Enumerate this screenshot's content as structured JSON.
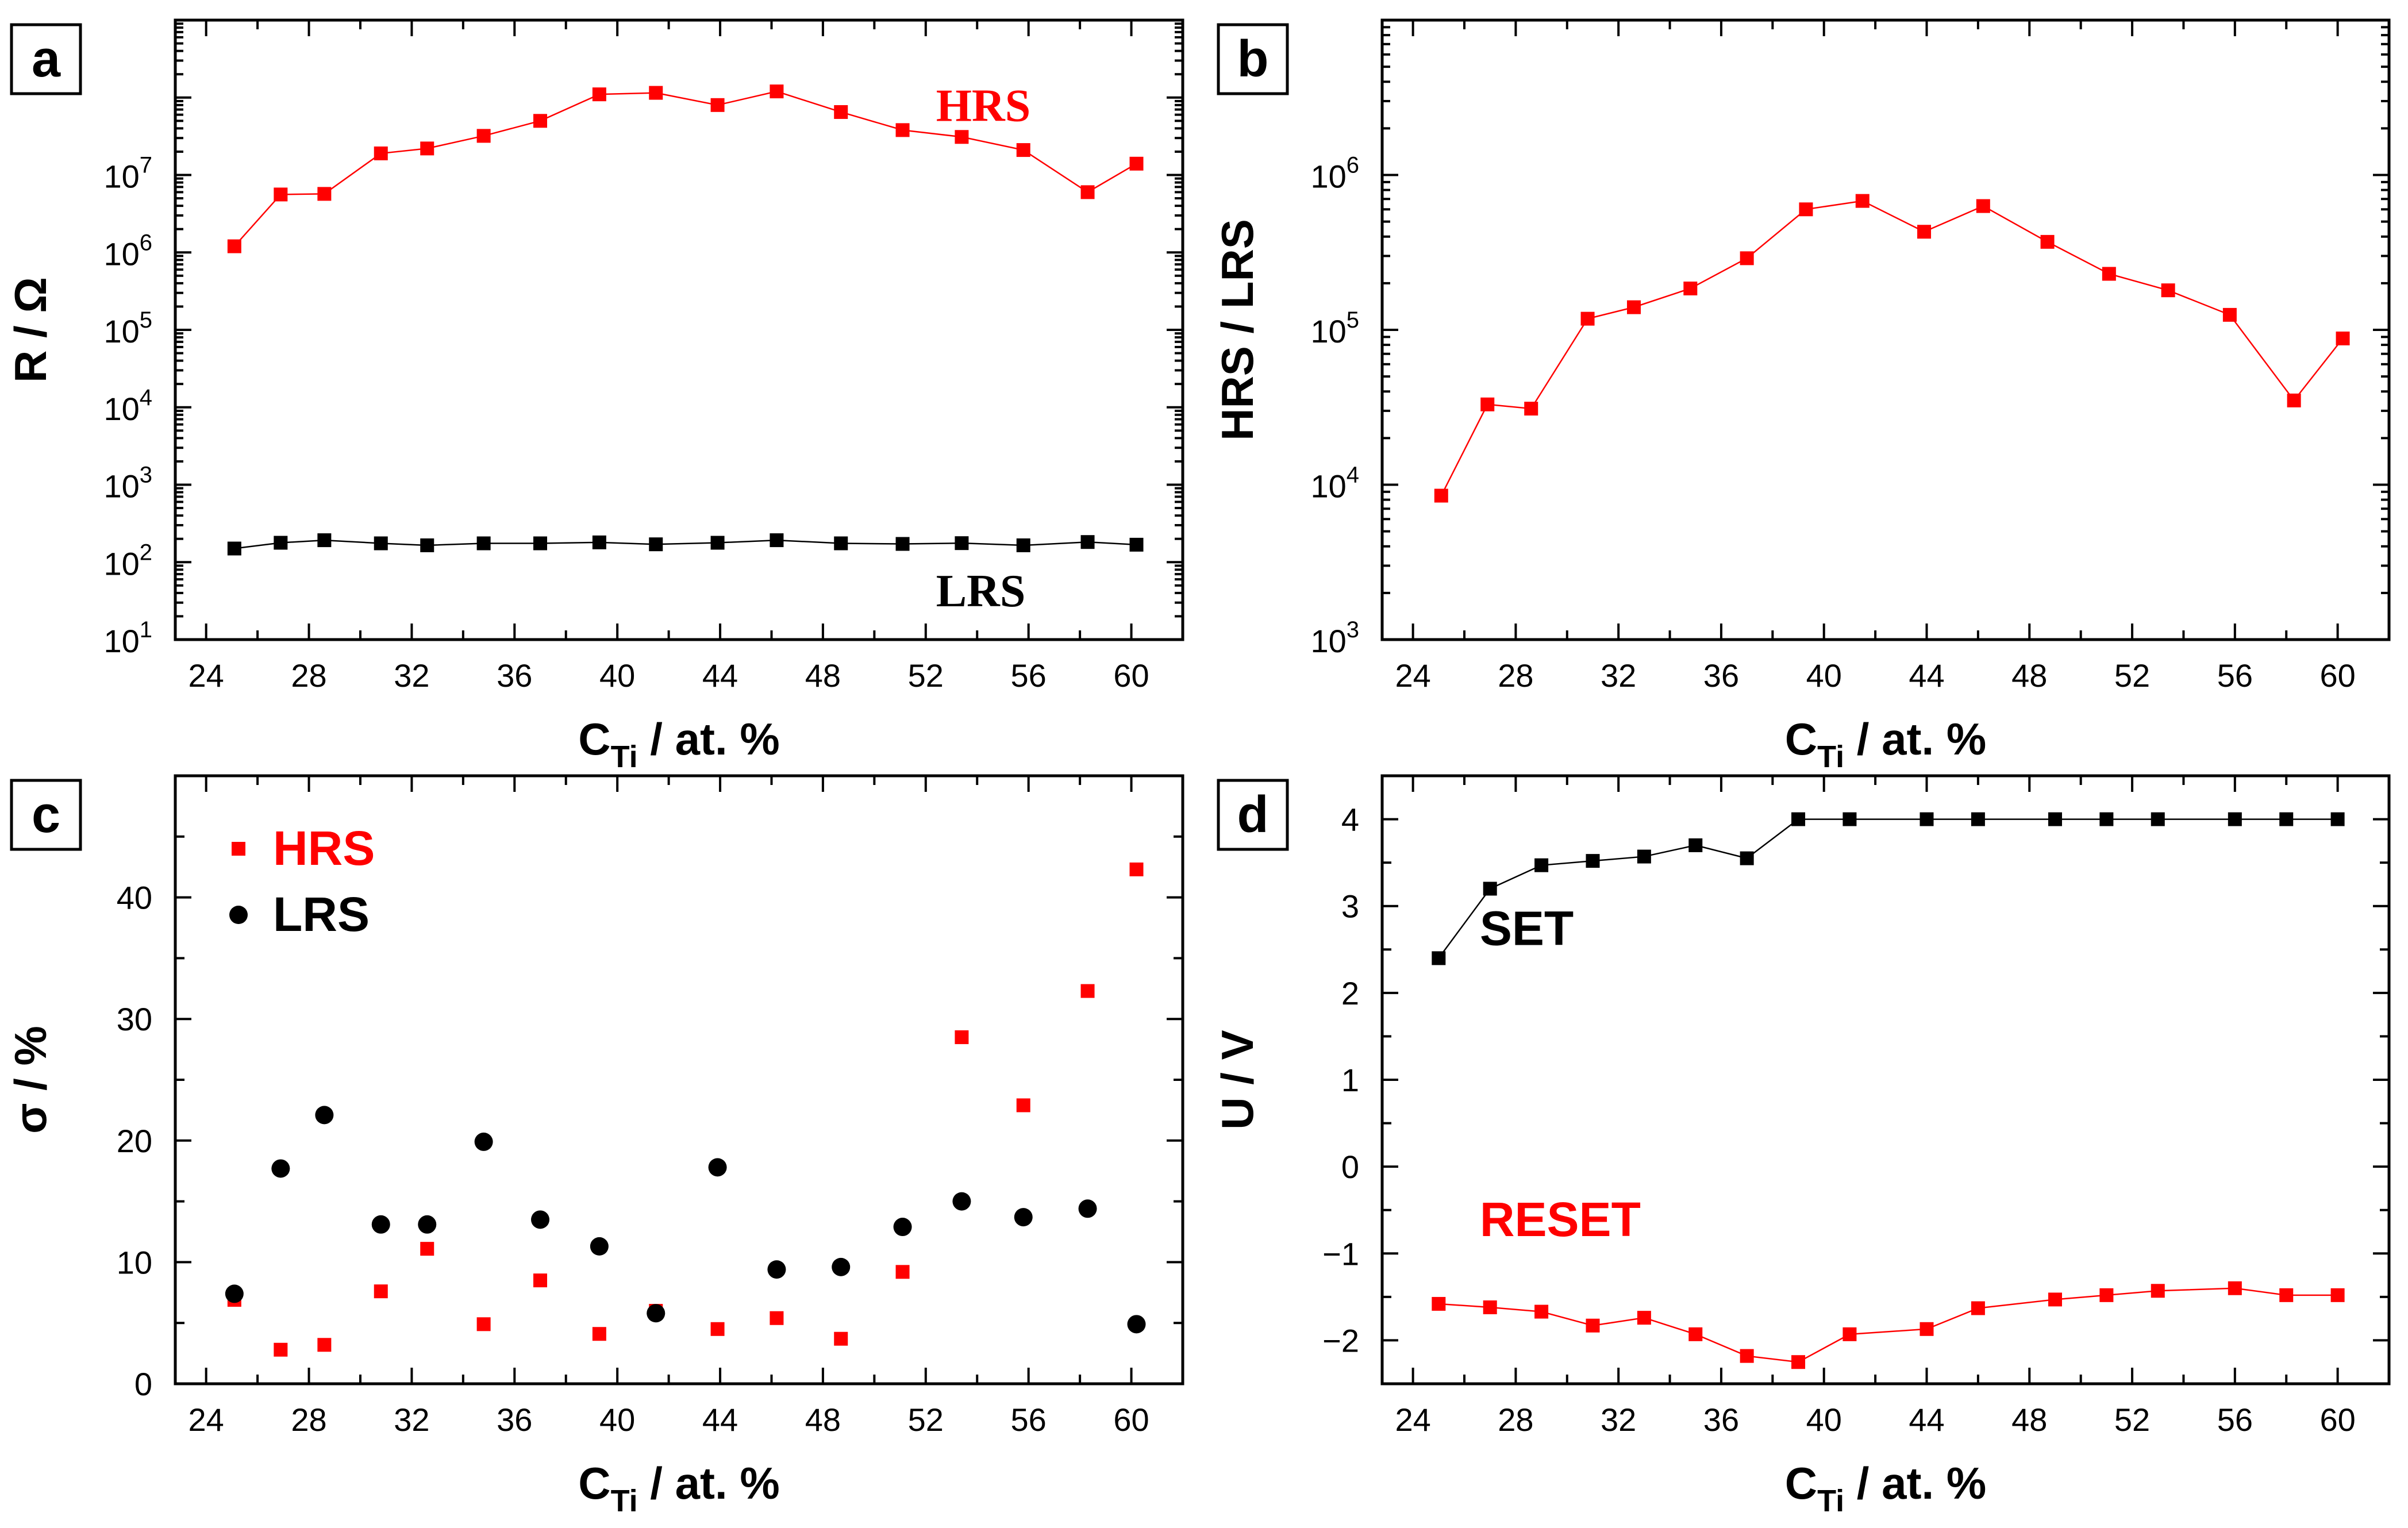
{
  "chart_data": [
    {
      "id": "a",
      "type": "line",
      "panel_label": "a",
      "xlabel": {
        "main": "C",
        "sub": "Ti",
        "rest": " / at. %"
      },
      "ylabel": "R  / Ω",
      "xlim": [
        22.8,
        62
      ],
      "ylim": [
        10,
        1000000000
      ],
      "yscale": "log",
      "xticks": [
        24,
        28,
        32,
        36,
        40,
        44,
        48,
        52,
        56,
        60
      ],
      "yticks": [
        {
          "v": 10,
          "exp": "1"
        },
        {
          "v": 100,
          "exp": "2"
        },
        {
          "v": 1000,
          "exp": "3"
        },
        {
          "v": 10000,
          "exp": "4"
        },
        {
          "v": 100000,
          "exp": "5"
        },
        {
          "v": 1000000,
          "exp": "6"
        },
        {
          "v": 10000000,
          "exp": "7"
        }
      ],
      "series": [
        {
          "name": "HRS",
          "color": "#ff0000",
          "marker": "square",
          "line": true,
          "x": [
            25.1,
            26.9,
            28.6,
            30.8,
            32.6,
            34.8,
            37.0,
            39.3,
            41.5,
            43.9,
            46.2,
            48.7,
            51.1,
            53.4,
            55.8,
            58.3,
            60.2
          ],
          "y": [
            1200000,
            5600000,
            5700000,
            19000000,
            22000000,
            32000000,
            50000000,
            110000000,
            115000000,
            80000000,
            120000000,
            65000000,
            38000000,
            31000000,
            21000000,
            6000000,
            14000000
          ]
        },
        {
          "name": "LRS",
          "color": "#000000",
          "marker": "square",
          "line": true,
          "x": [
            25.1,
            26.9,
            28.6,
            30.8,
            32.6,
            34.8,
            37.0,
            39.3,
            41.5,
            43.9,
            46.2,
            48.7,
            51.1,
            53.4,
            55.8,
            58.3,
            60.2
          ],
          "y": [
            150,
            178,
            192,
            175,
            165,
            175,
            175,
            180,
            170,
            178,
            192,
            175,
            172,
            176,
            165,
            182,
            168
          ]
        }
      ],
      "annotations": [
        {
          "text": "HRS",
          "color": "#ff0000",
          "x": 52.4,
          "y": 50000000,
          "style": "serif"
        },
        {
          "text": "LRS",
          "color": "#000000",
          "x": 52.4,
          "y": 27,
          "style": "serif"
        }
      ]
    },
    {
      "id": "b",
      "type": "line",
      "panel_label": "b",
      "xlabel": {
        "main": "C",
        "sub": "Ti",
        "rest": " / at. %"
      },
      "ylabel": "HRS / LRS",
      "xlim": [
        22.8,
        62
      ],
      "ylim": [
        1000,
        10000000
      ],
      "yscale": "log",
      "xticks": [
        24,
        28,
        32,
        36,
        40,
        44,
        48,
        52,
        56,
        60
      ],
      "yticks": [
        {
          "v": 1000,
          "exp": "3"
        },
        {
          "v": 10000,
          "exp": "4"
        },
        {
          "v": 100000,
          "exp": "5"
        },
        {
          "v": 1000000,
          "exp": "6"
        }
      ],
      "series": [
        {
          "name": "HRS/LRS",
          "color": "#ff0000",
          "marker": "square",
          "line": true,
          "x": [
            25.1,
            26.9,
            28.6,
            30.8,
            32.6,
            34.8,
            37.0,
            39.3,
            41.5,
            43.9,
            46.2,
            48.7,
            51.1,
            53.4,
            55.8,
            58.3,
            60.2
          ],
          "y": [
            8500,
            33000,
            31000,
            118000,
            140000,
            185000,
            290000,
            600000,
            680000,
            430000,
            630000,
            370000,
            230000,
            180000,
            125000,
            35000,
            88000
          ]
        }
      ],
      "annotations": []
    },
    {
      "id": "c",
      "type": "scatter",
      "panel_label": "c",
      "xlabel": {
        "main": "C",
        "sub": "Ti",
        "rest": " / at. %"
      },
      "ylabel": "σ / %",
      "xlim": [
        22.8,
        62
      ],
      "ylim": [
        0,
        50
      ],
      "yscale": "linear",
      "xticks": [
        24,
        28,
        32,
        36,
        40,
        44,
        48,
        52,
        56,
        60
      ],
      "yticks": [
        {
          "v": 0,
          "label": "0"
        },
        {
          "v": 10,
          "label": "10"
        },
        {
          "v": 20,
          "label": "20"
        },
        {
          "v": 30,
          "label": "30"
        },
        {
          "v": 40,
          "label": "40"
        }
      ],
      "legend": {
        "position": "top-left",
        "entries": [
          {
            "label": "HRS",
            "color": "#ff0000",
            "marker": "square"
          },
          {
            "label": "LRS",
            "color": "#000000",
            "marker": "circle"
          }
        ]
      },
      "series": [
        {
          "name": "HRS",
          "color": "#ff0000",
          "marker": "square",
          "line": false,
          "x": [
            25.1,
            26.9,
            28.6,
            30.8,
            32.6,
            34.8,
            37.0,
            39.3,
            41.5,
            43.9,
            46.2,
            48.7,
            51.1,
            53.4,
            55.8,
            58.3,
            60.2
          ],
          "y": [
            6.9,
            2.8,
            3.2,
            7.6,
            11.1,
            4.9,
            8.5,
            4.1,
            6.0,
            4.5,
            5.4,
            3.7,
            9.2,
            28.5,
            22.9,
            32.3,
            42.3
          ]
        },
        {
          "name": "LRS",
          "color": "#000000",
          "marker": "circle",
          "line": false,
          "x": [
            25.1,
            26.9,
            28.6,
            30.8,
            32.6,
            34.8,
            37.0,
            39.3,
            41.5,
            43.9,
            46.2,
            48.7,
            51.1,
            53.4,
            55.8,
            58.3,
            60.2
          ],
          "y": [
            7.4,
            17.7,
            22.1,
            13.1,
            13.1,
            19.9,
            13.5,
            11.3,
            5.8,
            17.8,
            9.4,
            9.6,
            12.9,
            15.0,
            13.7,
            14.4,
            4.9
          ]
        }
      ],
      "annotations": []
    },
    {
      "id": "d",
      "type": "line",
      "panel_label": "d",
      "xlabel": {
        "main": "C",
        "sub": "Ti",
        "rest": " / at. %"
      },
      "ylabel": "U / V",
      "xlim": [
        22.8,
        62
      ],
      "ylim": [
        -2.5,
        4.5
      ],
      "yscale": "linear",
      "xticks": [
        24,
        28,
        32,
        36,
        40,
        44,
        48,
        52,
        56,
        60
      ],
      "yticks": [
        {
          "v": -2,
          "label": "−2"
        },
        {
          "v": -1,
          "label": "−1"
        },
        {
          "v": 0,
          "label": "0"
        },
        {
          "v": 1,
          "label": "1"
        },
        {
          "v": 2,
          "label": "2"
        },
        {
          "v": 3,
          "label": "3"
        },
        {
          "v": 4,
          "label": "4"
        }
      ],
      "series": [
        {
          "name": "SET",
          "color": "#000000",
          "marker": "square",
          "line": true,
          "x": [
            25,
            27,
            29,
            31,
            33,
            35,
            37,
            39,
            41,
            44,
            46,
            49,
            51,
            53,
            56,
            58,
            60
          ],
          "y": [
            2.4,
            3.2,
            3.47,
            3.52,
            3.57,
            3.7,
            3.55,
            4.0,
            4.0,
            4.0,
            4.0,
            4.0,
            4.0,
            4.0,
            4.0,
            4.0,
            4.0
          ]
        },
        {
          "name": "RESET",
          "color": "#ff0000",
          "marker": "square",
          "line": true,
          "x": [
            25,
            27,
            29,
            31,
            33,
            35,
            37,
            39,
            41,
            44,
            46,
            49,
            51,
            53,
            56,
            58,
            60
          ],
          "y": [
            -1.58,
            -1.62,
            -1.67,
            -1.83,
            -1.74,
            -1.93,
            -2.18,
            -2.25,
            -1.93,
            -1.87,
            -1.63,
            -1.53,
            -1.48,
            -1.43,
            -1.4,
            -1.48,
            -1.48
          ]
        }
      ],
      "annotations": [
        {
          "text": "SET",
          "color": "#000000",
          "x": 26.6,
          "y": 2.55,
          "style": "sans"
        },
        {
          "text": "RESET",
          "color": "#ff0000",
          "x": 26.6,
          "y": -0.8,
          "style": "sans"
        }
      ]
    }
  ]
}
